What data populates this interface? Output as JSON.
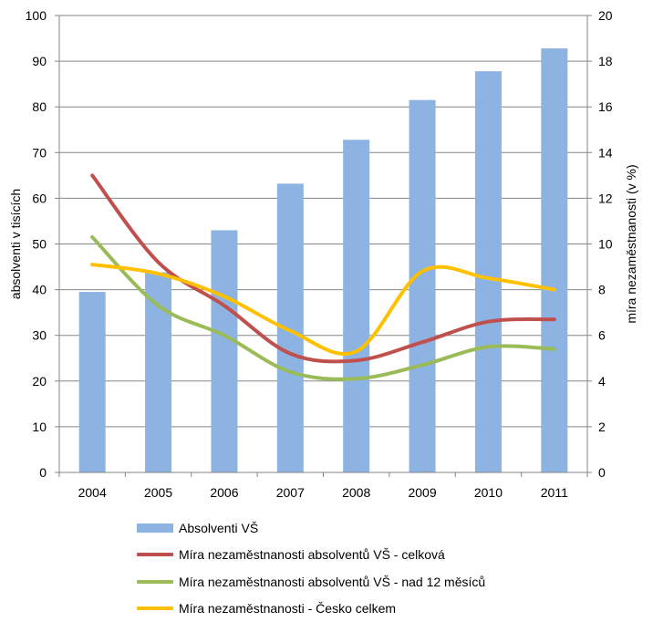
{
  "chart_data": {
    "type": "bar",
    "categories": [
      "2004",
      "2005",
      "2006",
      "2007",
      "2008",
      "2009",
      "2010",
      "2011"
    ],
    "series": [
      {
        "name": "Absolventi VŠ",
        "type": "bar",
        "axis": "left",
        "color": "#8DB3E2",
        "values": [
          39.5,
          43.8,
          53.0,
          63.2,
          72.8,
          81.5,
          87.8,
          92.8
        ]
      },
      {
        "name": "Míra nezaměstnanosti absolventů VŠ - celková",
        "type": "line",
        "axis": "right",
        "color": "#C0504D",
        "values": [
          13.0,
          9.2,
          7.3,
          5.2,
          4.9,
          5.7,
          6.6,
          6.7
        ]
      },
      {
        "name": "Míra nezaměstnanosti absolventů VŠ - nad 12 měsíců",
        "type": "line",
        "axis": "right",
        "color": "#9BBB59",
        "values": [
          10.3,
          7.3,
          6.0,
          4.4,
          4.1,
          4.7,
          5.5,
          5.4
        ]
      },
      {
        "name": "Míra nezaměstnanosti - Česko celkem",
        "type": "line",
        "axis": "right",
        "color": "#FFC000",
        "values": [
          9.1,
          8.7,
          7.7,
          6.2,
          5.3,
          8.8,
          8.5,
          8.0
        ]
      }
    ],
    "ylabel": "absolventi v tisících",
    "y2label": "míra nezaměstnanosti (v %)",
    "ylim": [
      0,
      100
    ],
    "y2lim": [
      0,
      20
    ],
    "yticks": [
      "0",
      "10",
      "20",
      "30",
      "40",
      "50",
      "60",
      "70",
      "80",
      "90",
      "100"
    ],
    "y2ticks": [
      "0",
      "2",
      "4",
      "6",
      "8",
      "10",
      "12",
      "14",
      "16",
      "18",
      "20"
    ],
    "grid": true,
    "legend_position": "bottom"
  }
}
